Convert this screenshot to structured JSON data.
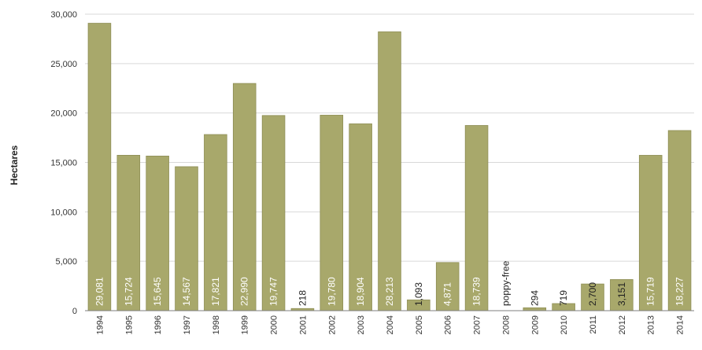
{
  "chart_data": {
    "type": "bar",
    "title": "",
    "xlabel": "",
    "ylabel": "Hectares",
    "ylim": [
      0,
      30000
    ],
    "yticks": [
      0,
      5000,
      10000,
      15000,
      20000,
      25000,
      30000
    ],
    "ytick_labels": [
      "0",
      "5,000",
      "10,000",
      "15,000",
      "20,000",
      "25,000",
      "30,000"
    ],
    "grid": true,
    "categories": [
      "1994",
      "1995",
      "1996",
      "1997",
      "1998",
      "1999",
      "2000",
      "2001",
      "2002",
      "2003",
      "2004",
      "2005",
      "2006",
      "2007",
      "2008",
      "2009",
      "2010",
      "2011",
      "2012",
      "2013",
      "2014"
    ],
    "values": [
      29081,
      15724,
      15645,
      14567,
      17821,
      22990,
      19747,
      218,
      19780,
      18904,
      28213,
      1093,
      4871,
      18739,
      0,
      294,
      719,
      2700,
      3151,
      15719,
      18227
    ],
    "data_labels": [
      "29,081",
      "15,724",
      "15,645",
      "14,567",
      "17,821",
      "22,990",
      "19,747",
      "218",
      "19,780",
      "18,904",
      "28,213",
      "1,093",
      "4,871",
      "18,739",
      "poppy-free",
      "294",
      "719",
      "2,700",
      "3,151",
      "15,719",
      "18,227"
    ],
    "colors": {
      "bar": "#a8a86b",
      "bar_edge": "#8e8e55",
      "grid": "#d9d9d9",
      "axis": "#7f7f7f",
      "label_inside": "#ffffff",
      "label_outside": "#222222"
    }
  }
}
